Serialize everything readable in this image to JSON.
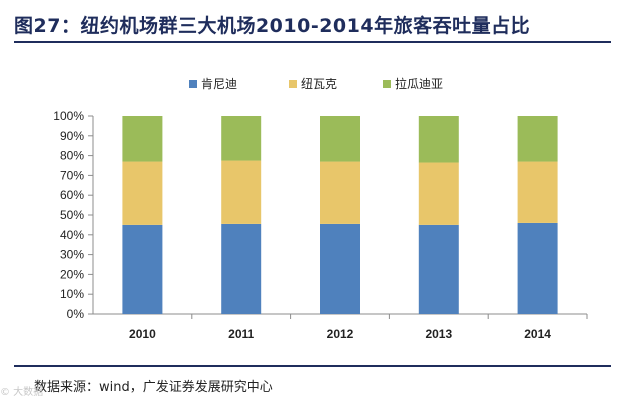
{
  "figure": {
    "title": "图27：纽约机场群三大机场2010-2014年旅客吞吐量占比",
    "source": "数据来源：wind，广发证券发展研究中心",
    "watermark": "© 大数据"
  },
  "chart_data": {
    "type": "bar",
    "stacked": true,
    "categories": [
      "2010",
      "2011",
      "2012",
      "2013",
      "2014"
    ],
    "series": [
      {
        "name": "肯尼迪",
        "color": "#4f81bd",
        "values": [
          45,
          45.5,
          45.5,
          45,
          46
        ]
      },
      {
        "name": "纽瓦克",
        "color": "#e8c66a",
        "values": [
          32,
          32,
          31.5,
          31.5,
          31
        ]
      },
      {
        "name": "拉瓜迪亚",
        "color": "#9bbb59",
        "values": [
          23,
          22.5,
          23,
          23.5,
          23
        ]
      }
    ],
    "ylim": [
      0,
      100
    ],
    "yticks": [
      "0%",
      "10%",
      "20%",
      "30%",
      "40%",
      "50%",
      "60%",
      "70%",
      "80%",
      "90%",
      "100%"
    ],
    "legend_position": "top"
  }
}
